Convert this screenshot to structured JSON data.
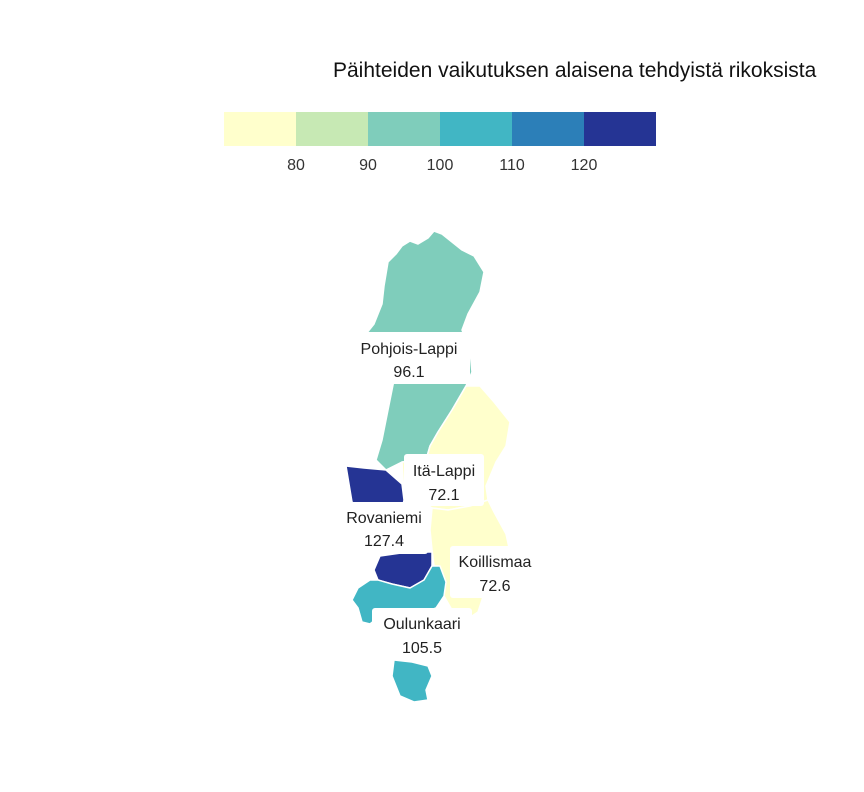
{
  "title": "Päihteiden vaikutuksen alaisena tehdyistä rikoksista",
  "legend": {
    "bins": [
      {
        "color": "#ffffcc"
      },
      {
        "color": "#c7e9b4"
      },
      {
        "color": "#7fcdbb"
      },
      {
        "color": "#41b6c4"
      },
      {
        "color": "#2c7fb8"
      },
      {
        "color": "#253494"
      }
    ],
    "breaks": [
      "80",
      "90",
      "100",
      "110",
      "120"
    ]
  },
  "regions": [
    {
      "name": "Pohjois-Lappi",
      "value": "96.1",
      "color": "#7fcdbb"
    },
    {
      "name": "Itä-Lappi",
      "value": "72.1",
      "color": "#ffffcc"
    },
    {
      "name": "Rovaniemi",
      "value": "127.4",
      "color": "#253494"
    },
    {
      "name": "Koillismaa",
      "value": "72.6",
      "color": "#ffffcc"
    },
    {
      "name": "Oulunkaari",
      "value": "105.5",
      "color": "#41b6c4"
    }
  ]
}
